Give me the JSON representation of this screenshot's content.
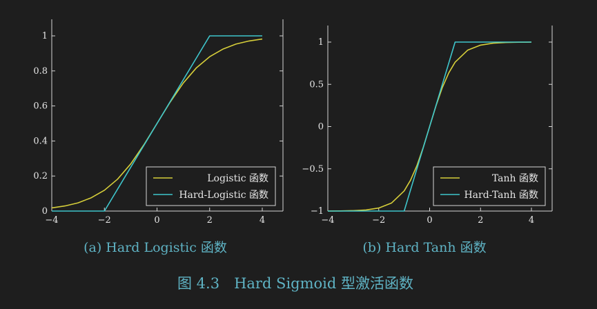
{
  "figure_caption": "图 4.3　Hard Sigmoid 型激活函数",
  "colors": {
    "smooth": "#d7cf3a",
    "hard": "#3fc6cc",
    "axis": "#d6d6d6",
    "caption": "#5fb3c4",
    "background": "#1e1e1e"
  },
  "chart_data": [
    {
      "type": "line",
      "caption": "(a) Hard Logistic 函数",
      "xlim": [
        -4,
        4
      ],
      "ylim": [
        0,
        1
      ],
      "xticks": [
        -4,
        -2,
        0,
        2,
        4
      ],
      "yticks": [
        0,
        0.2,
        0.4,
        0.6,
        0.8,
        1
      ],
      "xtick_labels": [
        "−4",
        "−2",
        "0",
        "2",
        "4"
      ],
      "ytick_labels": [
        "0",
        "0.2",
        "0.4",
        "0.6",
        "0.8",
        "1"
      ],
      "grid": false,
      "legend_position": "bottom-right",
      "series": [
        {
          "name": "Logistic 函数",
          "color": "#d7cf3a",
          "x": [
            -4,
            -3.5,
            -3,
            -2.5,
            -2,
            -1.5,
            -1,
            -0.5,
            0,
            0.5,
            1,
            1.5,
            2,
            2.5,
            3,
            3.5,
            4
          ],
          "y": [
            0.018,
            0.029,
            0.047,
            0.076,
            0.119,
            0.182,
            0.269,
            0.378,
            0.5,
            0.622,
            0.731,
            0.818,
            0.881,
            0.924,
            0.953,
            0.971,
            0.982
          ]
        },
        {
          "name": "Hard-Logistic 函数",
          "color": "#3fc6cc",
          "x": [
            -4,
            -2,
            2,
            4
          ],
          "y": [
            0,
            0,
            1,
            1
          ]
        }
      ]
    },
    {
      "type": "line",
      "caption": "(b) Hard Tanh 函数",
      "xlim": [
        -4,
        4
      ],
      "ylim": [
        -1,
        1
      ],
      "xticks": [
        -4,
        -2,
        0,
        2,
        4
      ],
      "yticks": [
        -1,
        -0.5,
        0,
        0.5,
        1
      ],
      "xtick_labels": [
        "−4",
        "−2",
        "0",
        "2",
        "4"
      ],
      "ytick_labels": [
        "−1",
        "−0.5",
        "0",
        "0.5",
        "1"
      ],
      "grid": false,
      "legend_position": "bottom-right",
      "series": [
        {
          "name": "Tanh 函数",
          "color": "#d7cf3a",
          "x": [
            -4,
            -3.5,
            -3,
            -2.5,
            -2,
            -1.5,
            -1,
            -0.75,
            -0.5,
            -0.25,
            0,
            0.25,
            0.5,
            0.75,
            1,
            1.5,
            2,
            2.5,
            3,
            3.5,
            4
          ],
          "y": [
            -0.999,
            -0.998,
            -0.995,
            -0.987,
            -0.964,
            -0.905,
            -0.762,
            -0.635,
            -0.462,
            -0.245,
            0,
            0.245,
            0.462,
            0.635,
            0.762,
            0.905,
            0.964,
            0.987,
            0.995,
            0.998,
            0.999
          ]
        },
        {
          "name": "Hard-Tanh 函数",
          "color": "#3fc6cc",
          "x": [
            -4,
            -1,
            1,
            4
          ],
          "y": [
            -1,
            -1,
            1,
            1
          ]
        }
      ]
    }
  ]
}
